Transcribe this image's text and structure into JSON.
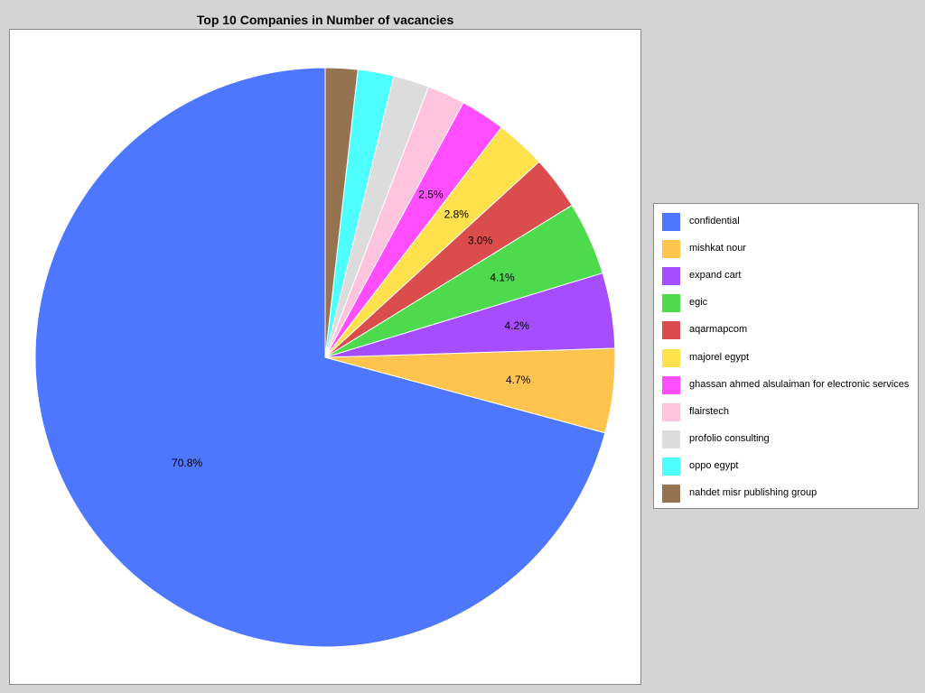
{
  "chart_data": {
    "type": "pie",
    "title": "Top 10 Companies in Number of vacancies",
    "legend_position": "right",
    "slices": [
      {
        "label": "confidential",
        "value": 70.8,
        "display": "70.8%",
        "color": "#4d77ff"
      },
      {
        "label": "mishkat nour",
        "value": 4.7,
        "display": "4.7%",
        "color": "#ffc44d"
      },
      {
        "label": "expand cart",
        "value": 4.2,
        "display": "4.2%",
        "color": "#a64dff"
      },
      {
        "label": "egic",
        "value": 4.1,
        "display": "4.1%",
        "color": "#4ddb4d"
      },
      {
        "label": "aqarmapcom",
        "value": 3.0,
        "display": "3.0%",
        "color": "#db4d4d"
      },
      {
        "label": "majorel egypt",
        "value": 2.8,
        "display": "2.8%",
        "color": "#ffe14d"
      },
      {
        "label": "ghassan ahmed alsulaiman for electronic services",
        "value": 2.5,
        "display": "2.5%",
        "color": "#ff4dff"
      },
      {
        "label": "flairstech",
        "value": 2.1,
        "display": "",
        "color": "#ffc4dd"
      },
      {
        "label": "profolio consulting",
        "value": 2.0,
        "display": "",
        "color": "#dcdcdc"
      },
      {
        "label": "oppo egypt",
        "value": 2.0,
        "display": "",
        "color": "#4dffff"
      },
      {
        "label": "nahdet misr publishing group",
        "value": 1.8,
        "display": "",
        "color": "#957350"
      }
    ]
  }
}
